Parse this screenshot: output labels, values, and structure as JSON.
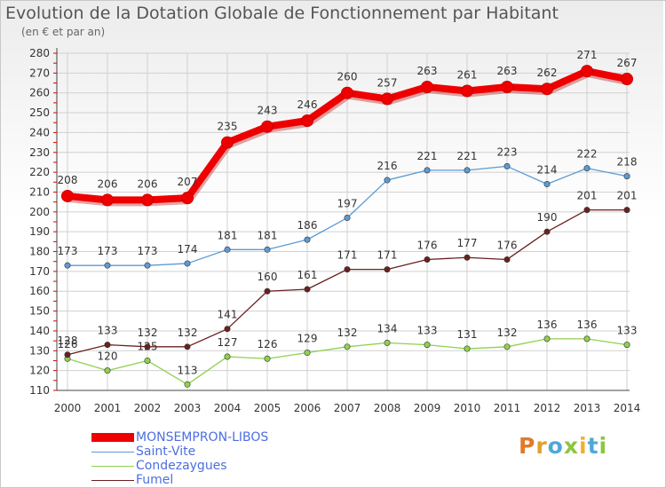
{
  "title": "Evolution de la Dotation Globale de Fonctionnement par Habitant",
  "subtitle": "(en € et par an)",
  "logo": "Proxiti",
  "colors": {
    "MONSEMPRON-LIBOS": "#ee0000",
    "Saint-Vite": "#5b9bd5",
    "Condezaygues": "#8fd14f",
    "Fumel": "#6b2020",
    "grid": "#d0d0d0",
    "axis": "#444444",
    "text": "#333333"
  },
  "chart_data": {
    "type": "line",
    "title": "Evolution de la Dotation Globale de Fonctionnement par Habitant",
    "subtitle": "(en € et par an)",
    "xlabel": "",
    "ylabel": "",
    "x": [
      "2000",
      "2001",
      "2002",
      "2003",
      "2004",
      "2005",
      "2006",
      "2007",
      "2008",
      "2009",
      "2010",
      "2011",
      "2012",
      "2013",
      "2014"
    ],
    "ylim": [
      110,
      280
    ],
    "yticks": [
      110,
      120,
      130,
      140,
      150,
      160,
      170,
      180,
      190,
      200,
      210,
      220,
      230,
      240,
      250,
      260,
      270,
      280
    ],
    "grid": true,
    "legend_position": "bottom-left",
    "series": [
      {
        "name": "MONSEMPRON-LIBOS",
        "values": [
          208,
          206,
          206,
          207,
          235,
          243,
          246,
          260,
          257,
          263,
          261,
          263,
          262,
          271,
          267
        ]
      },
      {
        "name": "Saint-Vite",
        "values": [
          173,
          173,
          173,
          174,
          181,
          181,
          186,
          197,
          216,
          221,
          221,
          223,
          214,
          222,
          218
        ]
      },
      {
        "name": "Condezaygues",
        "values": [
          126,
          120,
          125,
          113,
          127,
          126,
          129,
          132,
          134,
          133,
          131,
          132,
          136,
          136,
          133
        ]
      },
      {
        "name": "Fumel",
        "values": [
          128,
          133,
          132,
          132,
          141,
          160,
          161,
          171,
          171,
          176,
          177,
          176,
          190,
          201,
          201
        ]
      }
    ]
  }
}
